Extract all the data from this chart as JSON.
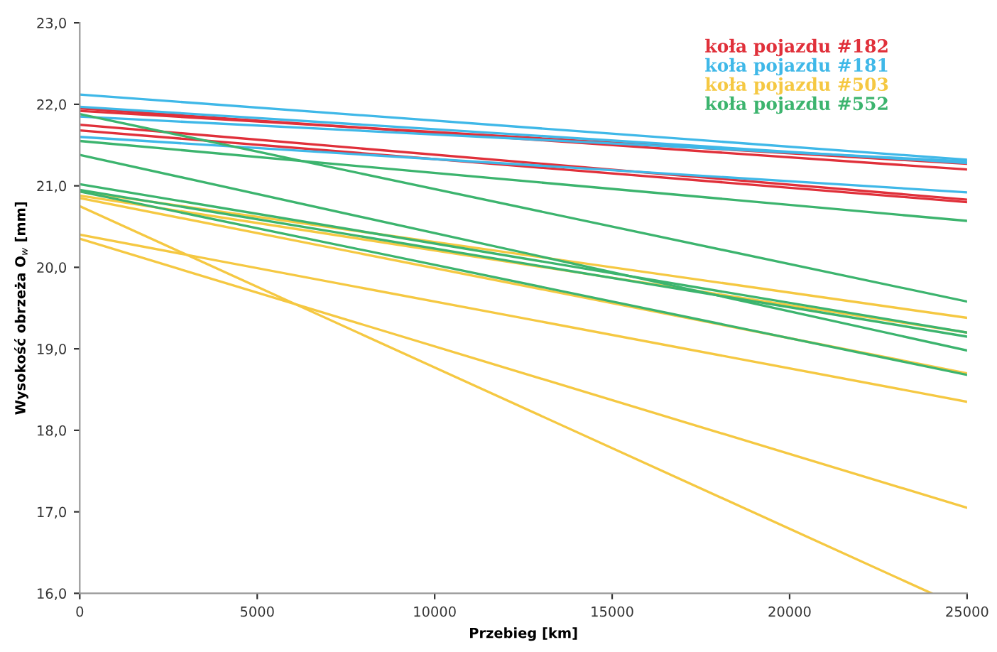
{
  "chart_data": {
    "type": "line",
    "xlabel": "Przebieg [km]",
    "ylabel": "Wysokość obrzeża O$_{w}$ [mm]",
    "xlim": [
      0,
      25000
    ],
    "xticks": [
      0,
      5000,
      10000,
      15000,
      20000,
      25000
    ],
    "ylim": [
      16,
      23
    ],
    "yticks": [
      {
        "value": 16,
        "label": "16,0"
      },
      {
        "value": 17,
        "label": "17,0"
      },
      {
        "value": 18,
        "label": "18,0"
      },
      {
        "value": 19,
        "label": "19,0"
      },
      {
        "value": 20,
        "label": "20,0"
      },
      {
        "value": 21,
        "label": "21,0"
      },
      {
        "value": 22,
        "label": "22,0"
      },
      {
        "value": 23,
        "label": "23,0"
      }
    ],
    "grid": false,
    "legend": "top right",
    "marker": "none",
    "line_style": "solid",
    "series": [
      {
        "name": "koła pojazdu #182",
        "color": "#e0303a",
        "x": [
          0,
          25000
        ],
        "values": [
          21.95,
          21.2
        ]
      },
      {
        "color": "#e0303a",
        "x": [
          0,
          25000
        ],
        "values": [
          21.92,
          21.27
        ]
      },
      {
        "color": "#e0303a",
        "x": [
          0,
          25000
        ],
        "values": [
          21.75,
          20.83
        ]
      },
      {
        "color": "#e0303a",
        "x": [
          0,
          25000
        ],
        "values": [
          21.68,
          20.8
        ]
      },
      {
        "name": "koła pojazdu #181",
        "color": "#3fb8e8",
        "x": [
          0,
          25000
        ],
        "values": [
          22.12,
          21.32
        ]
      },
      {
        "color": "#3fb8e8",
        "x": [
          0,
          25000
        ],
        "values": [
          21.97,
          21.28
        ]
      },
      {
        "color": "#3fb8e8",
        "x": [
          0,
          25000
        ],
        "values": [
          21.85,
          21.3
        ]
      },
      {
        "color": "#3fb8e8",
        "x": [
          0,
          25000
        ],
        "values": [
          21.6,
          20.92
        ]
      },
      {
        "name": "koła pojazdu #503",
        "color": "#f5c842",
        "x": [
          0,
          25000
        ],
        "values": [
          20.93,
          19.38
        ]
      },
      {
        "color": "#f5c842",
        "x": [
          0,
          25000
        ],
        "values": [
          20.88,
          19.2
        ]
      },
      {
        "color": "#f5c842",
        "x": [
          0,
          25000
        ],
        "values": [
          20.85,
          18.7
        ]
      },
      {
        "color": "#f5c842",
        "x": [
          0,
          24000
        ],
        "values": [
          20.75,
          16.0
        ]
      },
      {
        "color": "#f5c842",
        "x": [
          0,
          25000
        ],
        "values": [
          20.4,
          18.35
        ]
      },
      {
        "color": "#f5c842",
        "x": [
          0,
          25000
        ],
        "values": [
          20.35,
          17.05
        ]
      },
      {
        "name": "koła pojazdu #552",
        "color": "#3cb46e",
        "x": [
          0,
          25000
        ],
        "values": [
          21.88,
          19.58
        ]
      },
      {
        "color": "#3cb46e",
        "x": [
          0,
          25000
        ],
        "values": [
          21.55,
          20.57
        ]
      },
      {
        "color": "#3cb46e",
        "x": [
          0,
          25000
        ],
        "values": [
          21.38,
          18.98
        ]
      },
      {
        "color": "#3cb46e",
        "x": [
          0,
          25000
        ],
        "values": [
          21.02,
          19.2
        ]
      },
      {
        "color": "#3cb46e",
        "x": [
          0,
          25000
        ],
        "values": [
          20.95,
          19.15
        ]
      },
      {
        "color": "#3cb46e",
        "x": [
          0,
          25000
        ],
        "values": [
          20.93,
          18.68
        ]
      }
    ]
  }
}
